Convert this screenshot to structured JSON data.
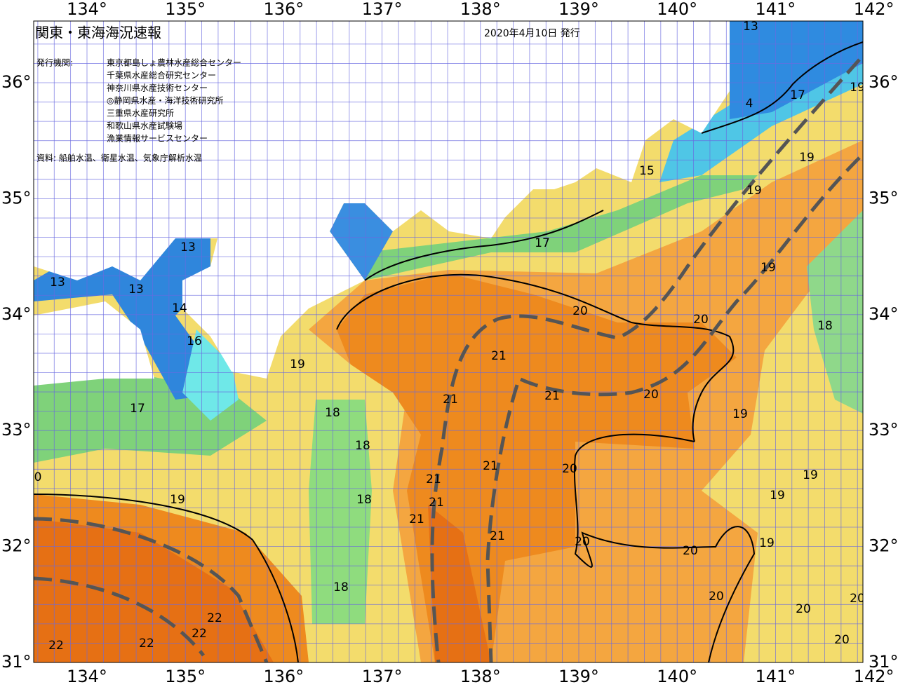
{
  "title": "関東・東海海況速報",
  "date": "2020年4月10日 発行",
  "issuers_label": "発行機関:",
  "issuers": [
    "東京都島しょ農林水産総合センター",
    "千葉県水産総合研究センター",
    "神奈川県水産技術センター",
    "◎静岡県水産・海洋技術研究所",
    "三重県水産研究所",
    "和歌山県水産試験場",
    "漁業情報サービスセンター"
  ],
  "source": "資料: 船舶水温、衛星水温、気象庁解析水温",
  "lon_labels": [
    "134°",
    "135°",
    "136°",
    "137°",
    "138°",
    "139°",
    "140°",
    "141°",
    "142°"
  ],
  "lat_labels": [
    "36°",
    "35°",
    "34°",
    "33°",
    "32°",
    "31°"
  ],
  "isotherm_labels": [
    13,
    4,
    17,
    19,
    19,
    15,
    19,
    13,
    17,
    13,
    13,
    14,
    19,
    20,
    20,
    18,
    16,
    19,
    21,
    21,
    21,
    20,
    19,
    17,
    18,
    18,
    21,
    20,
    0,
    21,
    19,
    21,
    19,
    18,
    19,
    21,
    21,
    20,
    20,
    19,
    18,
    20,
    20,
    20,
    22,
    22,
    22,
    22,
    20
  ]
}
